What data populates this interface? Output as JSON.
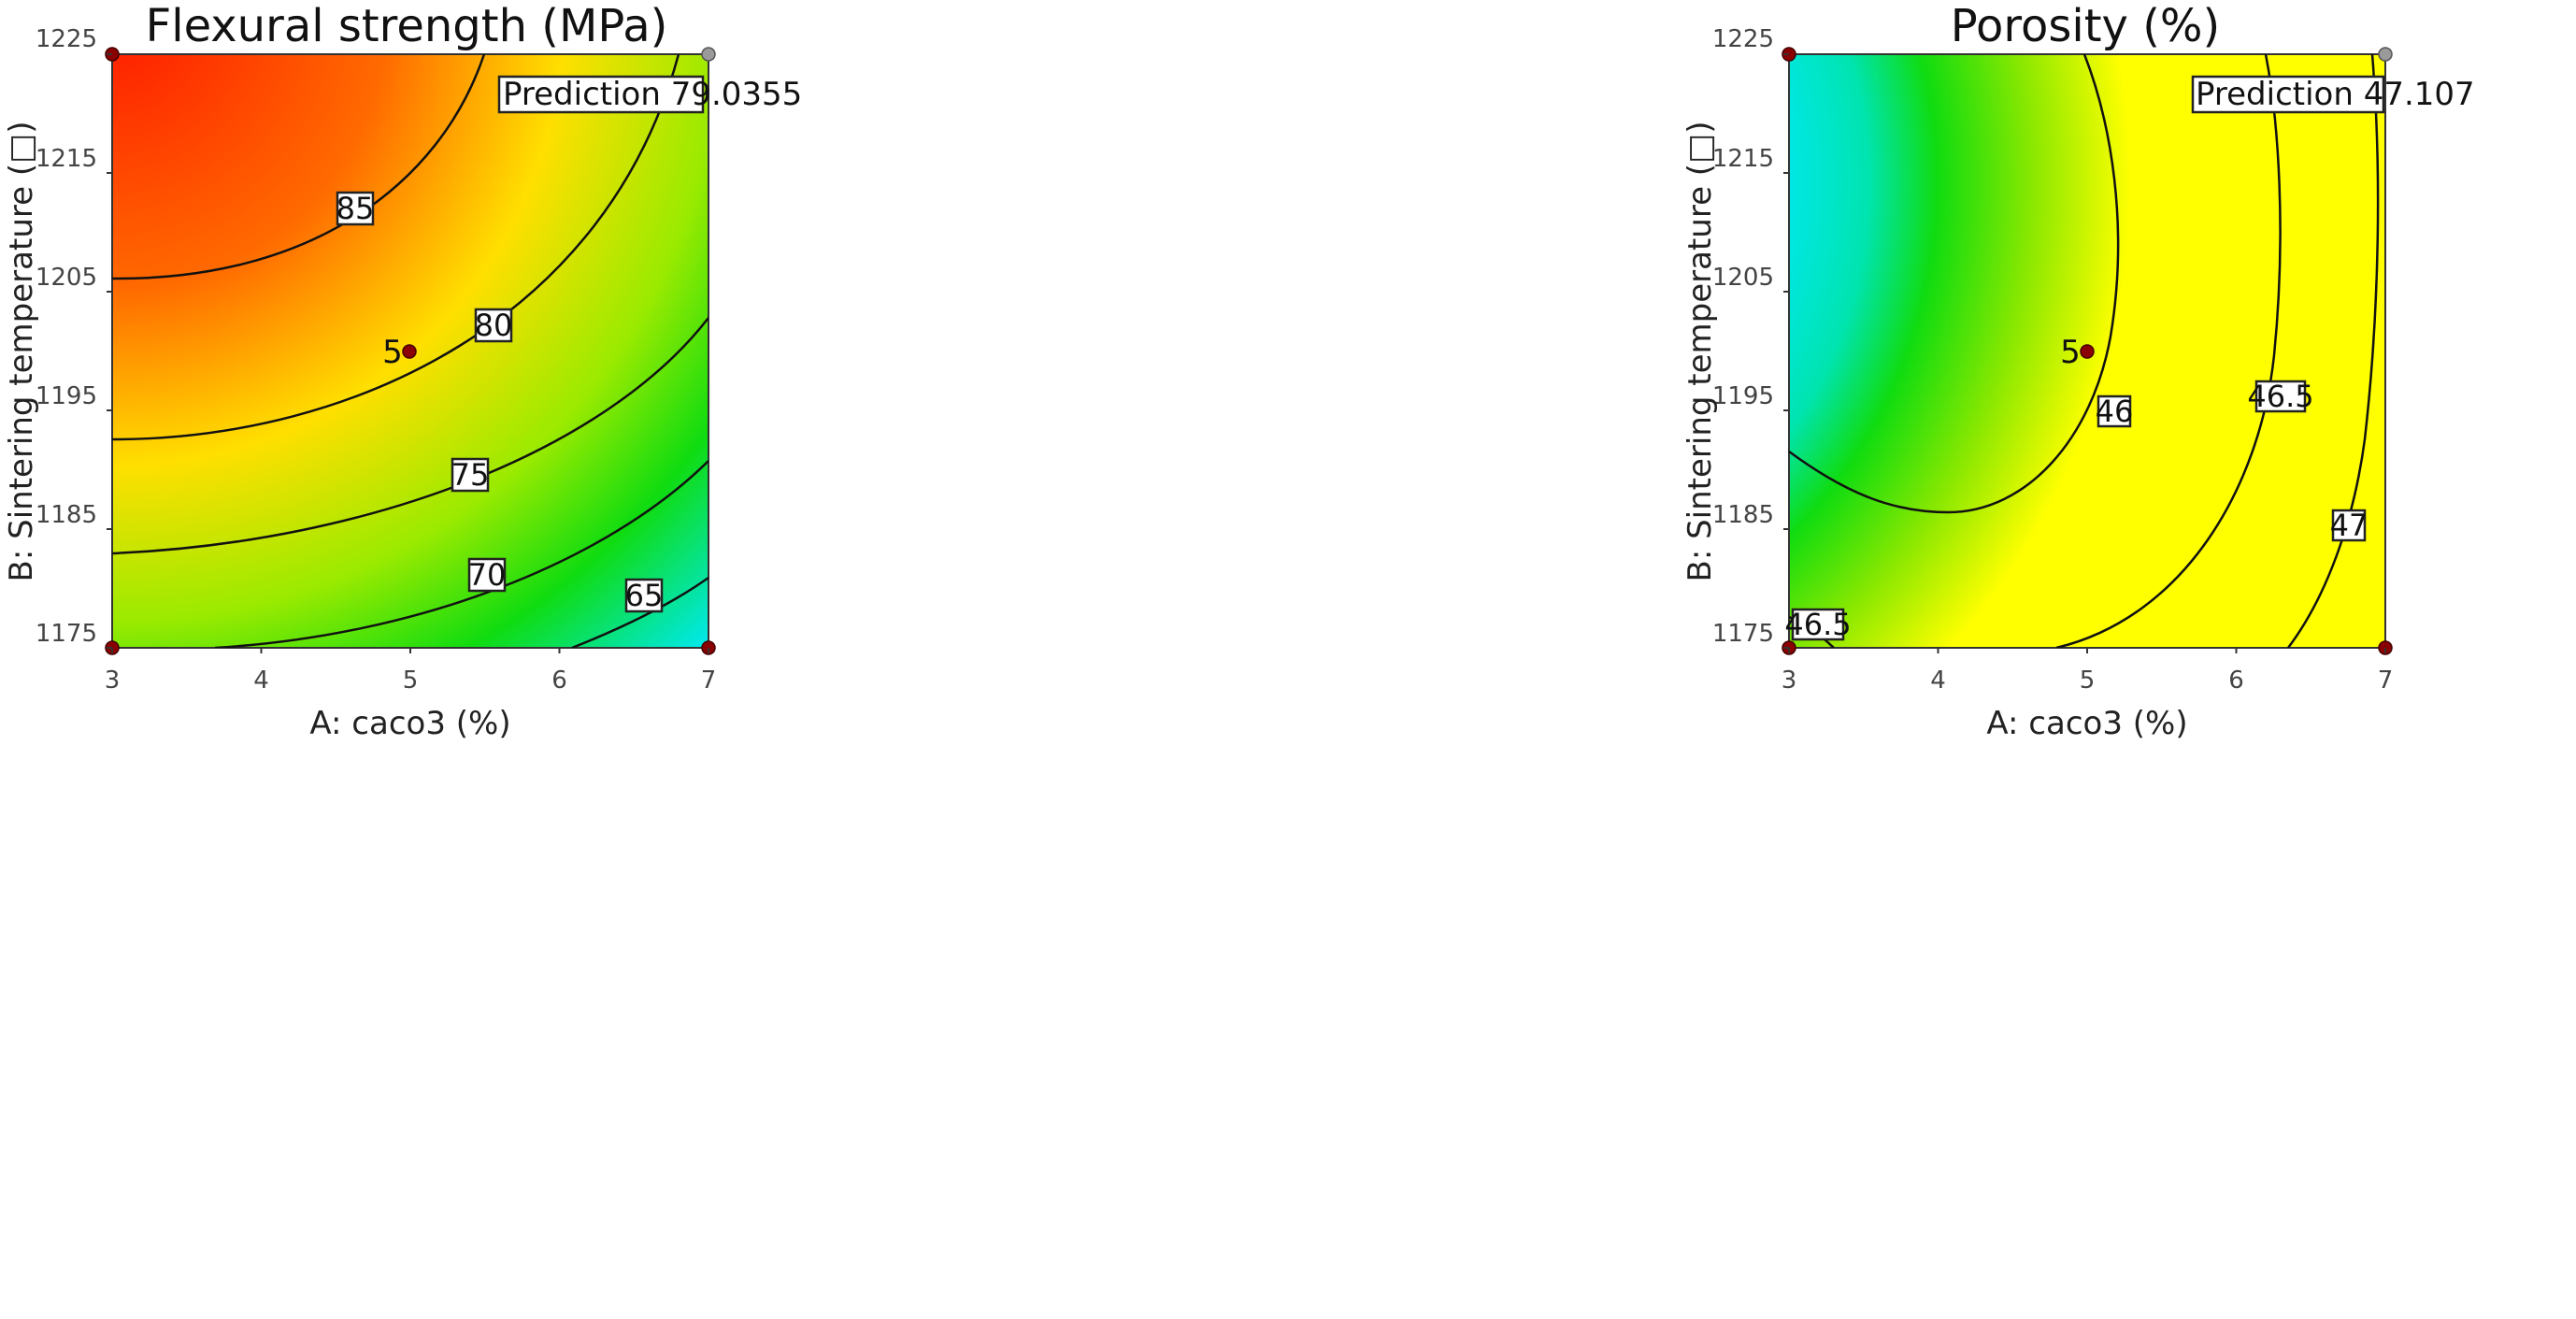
{
  "chart_data": [
    {
      "type": "contour",
      "title": "Flexural strength (MPa)",
      "xlabel": "A: caco3 (%)",
      "ylabel": "B: Sintering temperature (□)",
      "xlim": [
        3,
        7
      ],
      "ylim": [
        1175,
        1225
      ],
      "x_ticks": [
        "3",
        "4",
        "5",
        "6",
        "7"
      ],
      "y_ticks": [
        "1175",
        "1185",
        "1195",
        "1205",
        "1215",
        "1225"
      ],
      "contour_levels": [
        "85",
        "80",
        "75",
        "70",
        "65"
      ],
      "prediction_label": "Prediction",
      "prediction_value": "79.0355",
      "center_point": {
        "x": 5,
        "y": 1200,
        "label": "5"
      },
      "design_points": [
        {
          "x": 3,
          "y": 1225
        },
        {
          "x": 7,
          "y": 1225
        },
        {
          "x": 3,
          "y": 1175
        },
        {
          "x": 7,
          "y": 1175
        }
      ],
      "colormap": [
        "#0a3cd8",
        "#00e8f0",
        "#10dc10",
        "#ffff00",
        "#ff8800",
        "#ff1800"
      ],
      "value_range": [
        61,
        89
      ]
    },
    {
      "type": "contour",
      "title": "Porosity (%)",
      "xlabel": "A: caco3 (%)",
      "ylabel": "B: Sintering temperature (□)",
      "xlim": [
        3,
        7
      ],
      "ylim": [
        1175,
        1225
      ],
      "x_ticks": [
        "3",
        "4",
        "5",
        "6",
        "7"
      ],
      "y_ticks": [
        "1175",
        "1185",
        "1195",
        "1205",
        "1215",
        "1225"
      ],
      "contour_levels": [
        "46",
        "46.5",
        "47",
        "46.5"
      ],
      "prediction_label": "Prediction",
      "prediction_value": "47.107",
      "center_point": {
        "x": 5,
        "y": 1200,
        "label": "5"
      },
      "design_points": [
        {
          "x": 3,
          "y": 1225
        },
        {
          "x": 7,
          "y": 1225
        },
        {
          "x": 3,
          "y": 1175
        },
        {
          "x": 7,
          "y": 1175
        }
      ],
      "colormap": [
        "#0a50e8",
        "#00e8f0",
        "#10dc10",
        "#ffff00"
      ],
      "value_range": [
        45.5,
        47.2
      ]
    }
  ]
}
